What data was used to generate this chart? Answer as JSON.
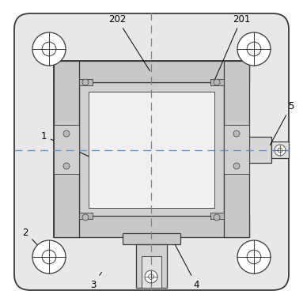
{
  "bg_color": "#ffffff",
  "plate_color": "#e8e8e8",
  "frame_outer_color": "#d8d8d8",
  "frame_inner_color": "#f0f0f0",
  "hinge_color": "#c8c8c8",
  "line_color": "#3a3a3a",
  "dash_color": "#6688bb",
  "fig_width": 3.83,
  "fig_height": 3.82,
  "label_fontsize": 8.5
}
